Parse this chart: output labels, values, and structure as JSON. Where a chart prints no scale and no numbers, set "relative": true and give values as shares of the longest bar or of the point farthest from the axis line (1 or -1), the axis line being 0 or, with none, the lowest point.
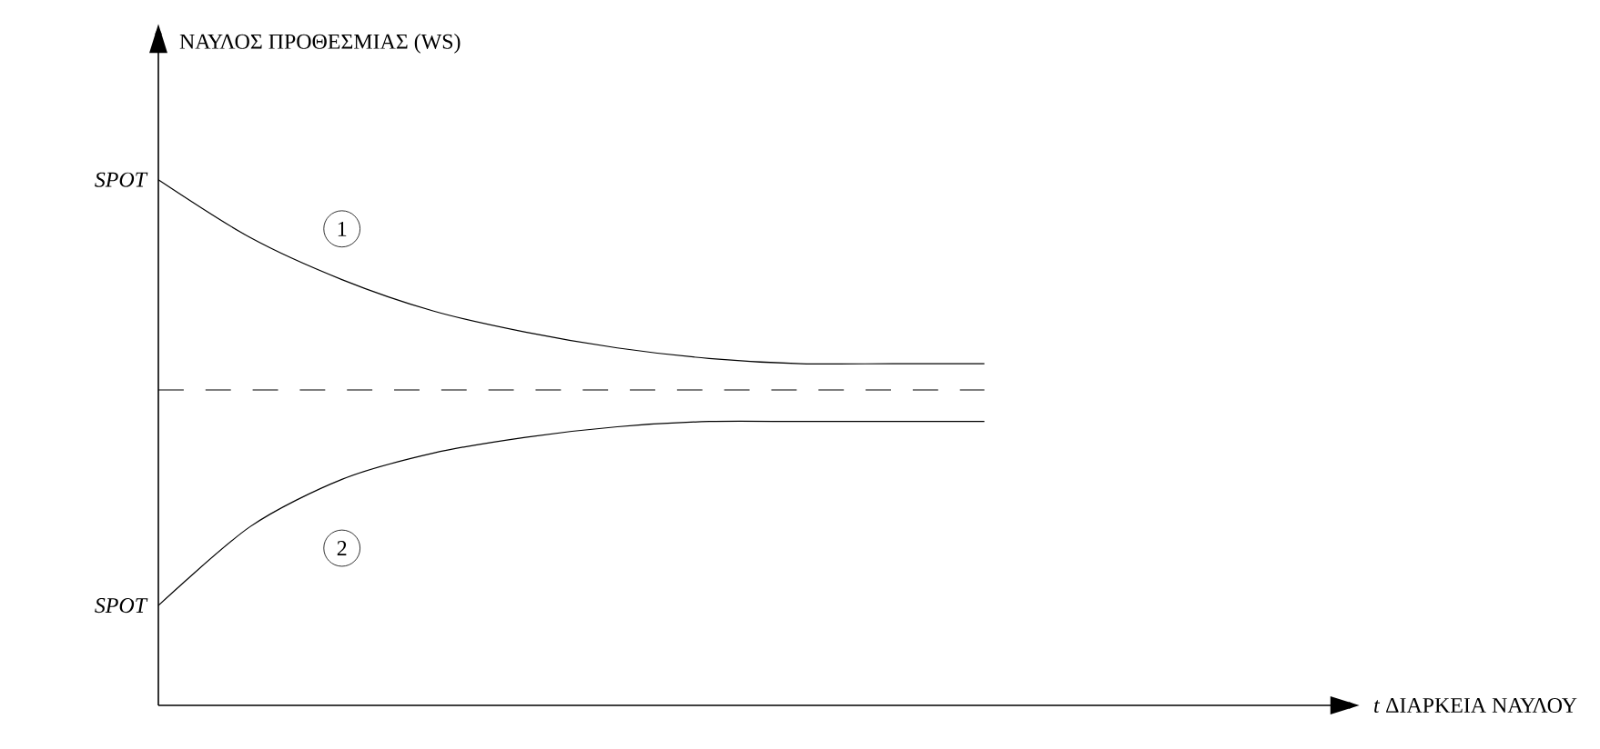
{
  "chart_data": {
    "type": "line",
    "relative": true,
    "categories": [
      null,
      null,
      null,
      null,
      null,
      null,
      null,
      null,
      null,
      null
    ],
    "series": [
      {
        "name": "1",
        "color": "#000000",
        "values": [
          1,
          0.89,
          0.81,
          0.75,
          0.71,
          0.68,
          0.66,
          0.65,
          0.65,
          0.65
        ]
      },
      {
        "name": "2",
        "color": "#000000",
        "values": [
          0.19,
          0.34,
          0.43,
          0.48,
          0.51,
          0.53,
          0.54,
          0.54,
          0.54,
          0.54
        ]
      }
    ],
    "ref_lines": [
      {
        "axis": "y",
        "value": 0.6,
        "line_style": "dashed",
        "color": "#000000"
      }
    ],
    "annotations": [
      "SPOT",
      "SPOT",
      "*t* ΔΙΑΡΚΕΙΑ ΝΑΥΛΟΥ",
      "ΝΑΥΛΟΣ ΠΡΟΘΕΣΜΙΑΣ (WS)"
    ],
    "line_style": "solid",
    "marker": "none"
  }
}
